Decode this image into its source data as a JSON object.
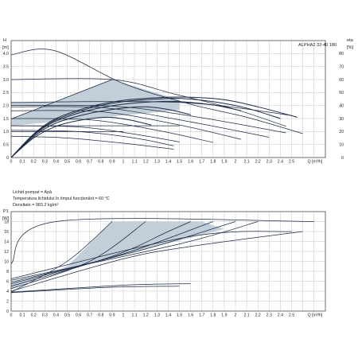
{
  "chart_data": [
    {
      "type": "line",
      "title": "ALPHA2 32-40 180",
      "y_left_label": [
        "H",
        "[m]"
      ],
      "y_right_label": [
        "eta",
        "[%]"
      ],
      "xlabel": "Q [m³/h]",
      "xlim": [
        0,
        2.8
      ],
      "x_ticks": [
        "0",
        "0.1",
        "0.2",
        "0.3",
        "0.4",
        "0.5",
        "0.6",
        "0.7",
        "0.8",
        "0.9",
        "1",
        "1.1",
        "1.2",
        "1.3",
        "1.4",
        "1.5",
        "1.6",
        "1.7",
        "1.8",
        "1.9",
        "2",
        "2.1",
        "2.2",
        "2.3",
        "2.4",
        "2.5",
        "Q [m³/h]"
      ],
      "ylim_left": [
        0,
        4.5
      ],
      "y_left_ticks": [
        "0",
        "0.5",
        "1.0",
        "1.5",
        "2.0",
        "2.5",
        "3.0",
        "3.5",
        "4.0"
      ],
      "ylim_right": [
        0,
        90
      ],
      "y_right_ticks": [
        "0",
        "10",
        "20",
        "30",
        "40",
        "50",
        "60",
        "70",
        "80"
      ],
      "grid": true,
      "shaded_regions": [
        {
          "points": [
            [
              0,
              1.48
            ],
            [
              0.9,
              3.0
            ],
            [
              1.5,
              2.22
            ],
            [
              1.5,
              1.82
            ],
            [
              0,
              1.22
            ]
          ]
        },
        {
          "points": [
            [
              0,
              2.12
            ],
            [
              1.5,
              2.12
            ],
            [
              1.5,
              1.95
            ],
            [
              0,
              2.0
            ]
          ]
        }
      ],
      "curves": [
        {
          "role": "max-curve",
          "points": [
            [
              0,
              3.95
            ],
            [
              0.38,
              4.12
            ],
            [
              1.0,
              2.85
            ],
            [
              1.6,
              2.05
            ],
            [
              2.1,
              1.55
            ],
            [
              2.6,
              0.92
            ]
          ]
        },
        {
          "role": "const-pressure-max",
          "points": [
            [
              0,
              3.0
            ],
            [
              0.9,
              3.0
            ],
            [
              1.45,
              2.45
            ],
            [
              2.0,
              1.85
            ],
            [
              2.45,
              1.2
            ]
          ]
        },
        {
          "role": "prop-pressure-max",
          "points": [
            [
              0,
              1.48
            ],
            [
              0.9,
              3.0
            ]
          ]
        },
        {
          "role": "auto-curve",
          "points": [
            [
              0,
              2.12
            ],
            [
              1.5,
              2.12
            ],
            [
              2.5,
              1.62
            ]
          ]
        },
        {
          "role": "speed-curve",
          "points": [
            [
              0,
              2.0
            ],
            [
              0.9,
              1.98
            ],
            [
              1.6,
              1.6
            ],
            [
              2.45,
              0.95
            ]
          ]
        },
        {
          "role": "speed-curve",
          "points": [
            [
              0,
              1.95
            ],
            [
              0.8,
              1.92
            ],
            [
              1.5,
              1.45
            ],
            [
              2.3,
              0.78
            ]
          ]
        },
        {
          "role": "speed-curve",
          "points": [
            [
              0,
              1.8
            ],
            [
              0.8,
              1.76
            ],
            [
              1.5,
              1.25
            ],
            [
              2.05,
              0.7
            ]
          ]
        },
        {
          "role": "speed-curve",
          "points": [
            [
              0,
              1.5
            ],
            [
              0.7,
              1.45
            ],
            [
              1.3,
              1.05
            ],
            [
              1.8,
              0.58
            ]
          ]
        },
        {
          "role": "speed-curve",
          "points": [
            [
              0,
              1.22
            ],
            [
              0.6,
              1.18
            ],
            [
              1.1,
              0.9
            ],
            [
              1.5,
              0.6
            ]
          ]
        },
        {
          "role": "speed-curve",
          "points": [
            [
              0,
              1.05
            ],
            [
              0.6,
              1.0
            ],
            [
              1.1,
              0.75
            ],
            [
              1.45,
              0.45
            ]
          ]
        },
        {
          "role": "speed-curve",
          "points": [
            [
              0,
              0.82
            ],
            [
              0.5,
              0.75
            ],
            [
              1.0,
              0.55
            ],
            [
              1.45,
              0.32
            ]
          ]
        },
        {
          "role": "const-pressure-low",
          "points": [
            [
              0,
              1.22
            ],
            [
              1.5,
              1.22
            ]
          ]
        },
        {
          "role": "const-pressure-low",
          "points": [
            [
              0,
              1.0
            ],
            [
              1.0,
              1.0
            ]
          ]
        }
      ],
      "efficiency_curves": [
        {
          "points": [
            [
              0,
              0
            ],
            [
              0.2,
              18
            ],
            [
              0.4,
              30
            ],
            [
              0.7,
              39
            ],
            [
              1.0,
              44
            ],
            [
              1.3,
              46
            ],
            [
              1.55,
              46.5
            ],
            [
              1.9,
              44.5
            ],
            [
              2.2,
              39
            ],
            [
              2.55,
              31
            ]
          ]
        },
        {
          "points": [
            [
              0,
              0
            ],
            [
              0.2,
              17.5
            ],
            [
              0.4,
              29
            ],
            [
              0.7,
              38
            ],
            [
              1.0,
              43
            ],
            [
              1.3,
              45
            ],
            [
              1.5,
              45.5
            ],
            [
              1.8,
              43
            ],
            [
              2.1,
              38
            ],
            [
              2.4,
              30
            ]
          ]
        },
        {
          "points": [
            [
              0,
              0
            ],
            [
              0.2,
              17
            ],
            [
              0.4,
              28
            ],
            [
              0.7,
              36.5
            ],
            [
              1.0,
              41
            ],
            [
              1.3,
              43
            ],
            [
              1.5,
              43
            ],
            [
              1.8,
              40.5
            ],
            [
              2.05,
              36
            ]
          ]
        },
        {
          "points": [
            [
              0,
              0
            ],
            [
              0.2,
              16
            ],
            [
              0.4,
              26.5
            ],
            [
              0.7,
              34
            ],
            [
              1.0,
              38
            ],
            [
              1.2,
              39
            ],
            [
              1.4,
              37
            ],
            [
              1.6,
              33
            ]
          ]
        },
        {
          "points": [
            [
              0,
              0
            ],
            [
              0.2,
              15
            ],
            [
              0.4,
              24
            ],
            [
              0.6,
              28.5
            ],
            [
              0.85,
              31
            ],
            [
              1.05,
              29
            ],
            [
              1.25,
              25
            ]
          ]
        }
      ]
    },
    {
      "type": "line",
      "y_label": [
        "P1",
        "[W]"
      ],
      "xlim": [
        0,
        2.8
      ],
      "x_ticks": [
        "0",
        "0.1",
        "0.2",
        "0.3",
        "0.4",
        "0.5",
        "0.6",
        "0.7",
        "0.8",
        "0.9",
        "1",
        "1.1",
        "1.2",
        "1.3",
        "1.4",
        "1.5",
        "1.6",
        "1.7",
        "1.8",
        "1.9",
        "2",
        "2.1",
        "2.2",
        "2.3",
        "2.4",
        "2.5",
        "Q [m³/h]"
      ],
      "ylim": [
        0,
        20
      ],
      "y_ticks": [
        "0",
        "2",
        "4",
        "6",
        "8",
        "10",
        "12",
        "14",
        "16",
        "18"
      ],
      "grid": true,
      "shaded_regions": [
        {
          "points": [
            [
              0,
              4.5
            ],
            [
              0.5,
              9.0
            ],
            [
              0.9,
              18.0
            ],
            [
              1.7,
              18.0
            ],
            [
              1.9,
              16.5
            ],
            [
              0,
              5.5
            ]
          ]
        }
      ],
      "curves": [
        {
          "points": [
            [
              0,
              9.5
            ],
            [
              0.4,
              18
            ],
            [
              2.7,
              18
            ]
          ]
        },
        {
          "points": [
            [
              0,
              3.8
            ],
            [
              0.5,
              10
            ],
            [
              0.9,
              18
            ]
          ]
        },
        {
          "points": [
            [
              0,
              4.5
            ],
            [
              0.7,
              10
            ],
            [
              1.2,
              18
            ]
          ]
        },
        {
          "points": [
            [
              0,
              5.0
            ],
            [
              0.9,
              11
            ],
            [
              1.4,
              16
            ],
            [
              1.6,
              18
            ]
          ]
        },
        {
          "points": [
            [
              0,
              5.5
            ],
            [
              1.0,
              11.5
            ],
            [
              1.8,
              18
            ]
          ]
        },
        {
          "points": [
            [
              0,
              5.8
            ],
            [
              1.2,
              12.5
            ],
            [
              2.0,
              18
            ]
          ]
        },
        {
          "points": [
            [
              0,
              6.2
            ],
            [
              1.5,
              13.5
            ],
            [
              2.2,
              18
            ]
          ]
        },
        {
          "points": [
            [
              0,
              6.5
            ],
            [
              1.6,
              15
            ],
            [
              2.5,
              16
            ]
          ]
        },
        {
          "points": [
            [
              0,
              4.0
            ],
            [
              1.0,
              10.5
            ],
            [
              1.6,
              13.0
            ],
            [
              2.6,
              16.0
            ]
          ]
        },
        {
          "points": [
            [
              0,
              3.8
            ],
            [
              1.0,
              5.2
            ],
            [
              1.6,
              5.5
            ]
          ]
        },
        {
          "points": [
            [
              0,
              3.7
            ],
            [
              0.9,
              4.8
            ],
            [
              1.5,
              5.0
            ]
          ]
        }
      ]
    }
  ],
  "info": {
    "liquid": "Lichid pompat = Apă",
    "temperature": "Temperatura lichidului în timpul funcționării = 60 °C",
    "density": "Densitate = 983.2 kg/m³"
  },
  "colors": {
    "curve": "#1c2a44",
    "shade": "#c2ced8",
    "grid": "#b8b8b8",
    "frame": "#333333"
  }
}
